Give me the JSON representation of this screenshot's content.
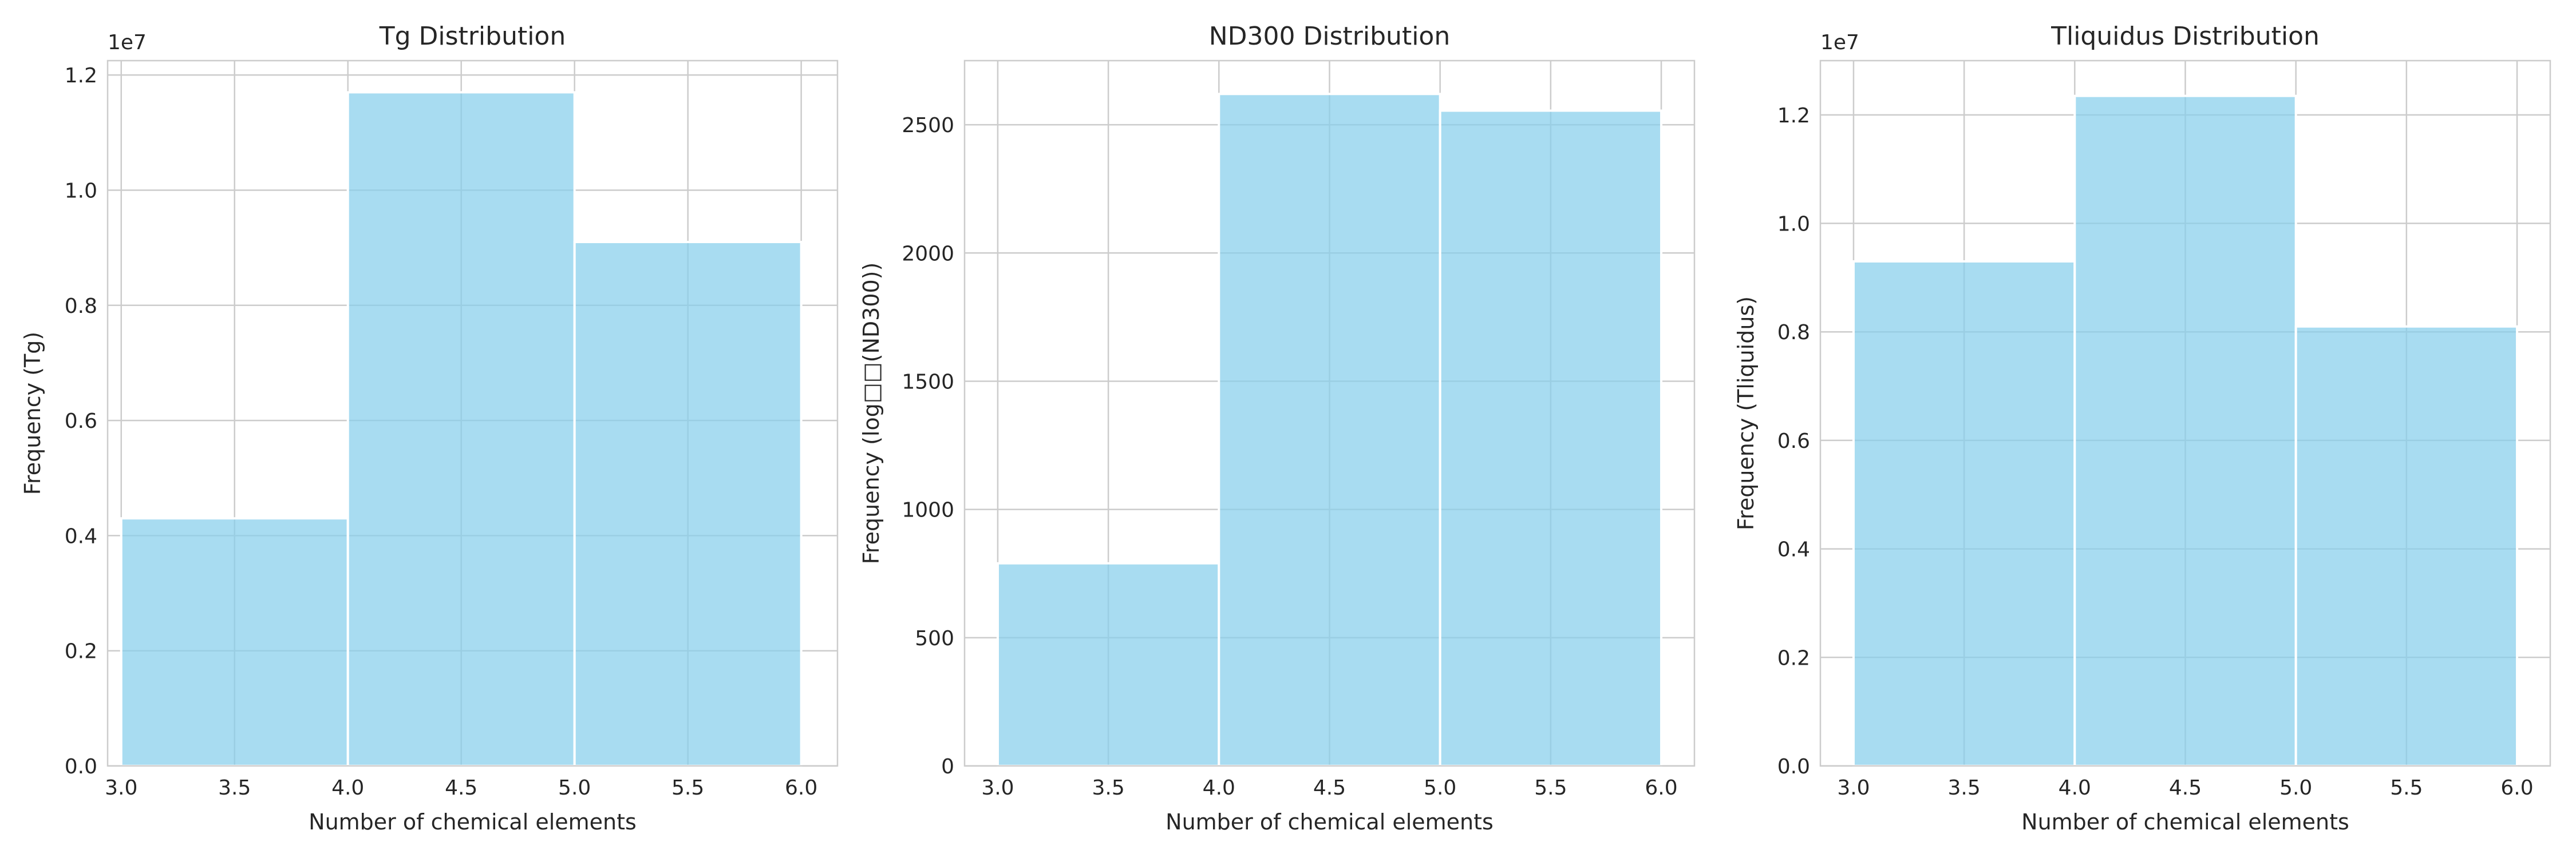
{
  "colors": {
    "bar": "#87ceeb",
    "bar_opacity": 0.72,
    "grid": "#cccccc",
    "text": "#262626"
  },
  "chart_data": [
    {
      "type": "bar",
      "title": "Tg Distribution",
      "xlabel": "Number of chemical elements",
      "ylabel": "Frequency (Tg)",
      "offset_text": "1e7",
      "bins": [
        [
          3.0,
          4.0
        ],
        [
          4.0,
          5.0
        ],
        [
          5.0,
          6.0
        ]
      ],
      "values": [
        4300000,
        11700000,
        9100000
      ],
      "xlim": [
        2.94,
        6.16
      ],
      "ylim": [
        0,
        12250000
      ],
      "xticks": [
        3.0,
        3.5,
        4.0,
        4.5,
        5.0,
        5.5,
        6.0
      ],
      "xtick_labels": [
        "3.0",
        "3.5",
        "4.0",
        "4.5",
        "5.0",
        "5.5",
        "6.0"
      ],
      "yticks": [
        0,
        2000000,
        4000000,
        6000000,
        8000000,
        10000000,
        12000000
      ],
      "ytick_labels": [
        "0.0",
        "0.2",
        "0.4",
        "0.6",
        "0.8",
        "1.0",
        "1.2"
      ],
      "grid": true
    },
    {
      "type": "bar",
      "title": "ND300 Distribution",
      "xlabel": "Number of chemical elements",
      "ylabel": "Frequency (log□□(ND300))",
      "offset_text": "",
      "bins": [
        [
          3.0,
          4.0
        ],
        [
          4.0,
          5.0
        ],
        [
          5.0,
          6.0
        ]
      ],
      "values": [
        790,
        2620,
        2555
      ],
      "xlim": [
        2.85,
        6.15
      ],
      "ylim": [
        0,
        2750
      ],
      "xticks": [
        3.0,
        3.5,
        4.0,
        4.5,
        5.0,
        5.5,
        6.0
      ],
      "xtick_labels": [
        "3.0",
        "3.5",
        "4.0",
        "4.5",
        "5.0",
        "5.5",
        "6.0"
      ],
      "yticks": [
        0,
        500,
        1000,
        1500,
        2000,
        2500
      ],
      "ytick_labels": [
        "0",
        "500",
        "1000",
        "1500",
        "2000",
        "2500"
      ],
      "grid": true
    },
    {
      "type": "bar",
      "title": "Tliquidus Distribution",
      "xlabel": "Number of chemical elements",
      "ylabel": "Frequency (Tliquidus)",
      "offset_text": "1e7",
      "bins": [
        [
          3.0,
          4.0
        ],
        [
          4.0,
          5.0
        ],
        [
          5.0,
          6.0
        ]
      ],
      "values": [
        9300000,
        12350000,
        8100000
      ],
      "xlim": [
        2.85,
        6.15
      ],
      "ylim": [
        0,
        13000000
      ],
      "xticks": [
        3.0,
        3.5,
        4.0,
        4.5,
        5.0,
        5.5,
        6.0
      ],
      "xtick_labels": [
        "3.0",
        "3.5",
        "4.0",
        "4.5",
        "5.0",
        "5.5",
        "6.0"
      ],
      "yticks": [
        0,
        2000000,
        4000000,
        6000000,
        8000000,
        10000000,
        12000000
      ],
      "ytick_labels": [
        "0.0",
        "0.2",
        "0.4",
        "0.6",
        "0.8",
        "1.0",
        "1.2"
      ],
      "grid": true
    }
  ]
}
